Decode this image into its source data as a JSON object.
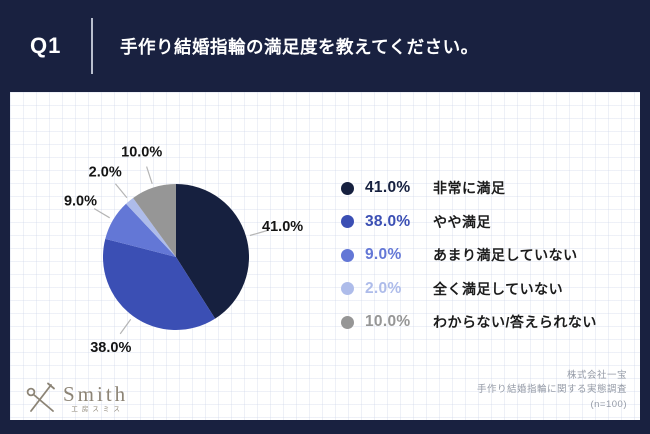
{
  "header": {
    "question_label": "Q1",
    "title": "手作り結婚指輪の満足度を教えてください。"
  },
  "chart_data": {
    "type": "pie",
    "start_angle_deg": 0,
    "direction": "clockwise",
    "categories": [
      "非常に満足",
      "やや満足",
      "あまり満足していない",
      "全く満足していない",
      "わからない/答えられない"
    ],
    "values": [
      41.0,
      38.0,
      9.0,
      2.0,
      10.0
    ],
    "unit": "%",
    "colors": [
      "#16203f",
      "#3b4fb4",
      "#6377d6",
      "#aebcea",
      "#969696"
    ],
    "legend_position": "right",
    "labels_outside_with_leader_lines": true
  },
  "theme": {
    "background": "#192140",
    "card": "#ffffff",
    "leader_line": "#b5b5b5",
    "pie_label_text": "#141414",
    "legend_label_text": "#1c1c1c"
  },
  "footer": {
    "logo": {
      "name": "Smith",
      "subtitle": "工房スミス",
      "color": "#8c8476"
    },
    "source_lines": [
      "株式会社一宝",
      "手作り結婚指輪に関する実態調査",
      "(n=100)"
    ]
  }
}
